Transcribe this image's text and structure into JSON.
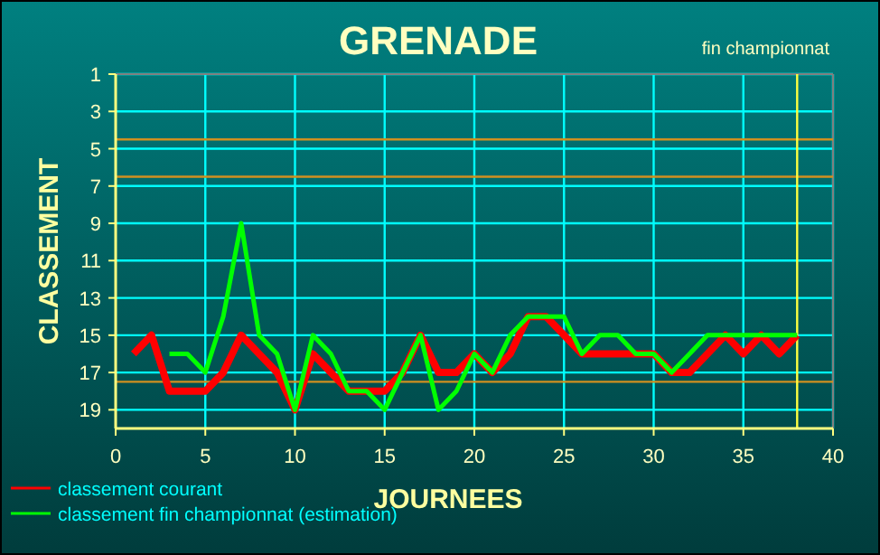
{
  "chart_data": {
    "type": "line",
    "title": "GRENADE",
    "xlabel": "JOURNEES",
    "ylabel": "CLASSEMENT",
    "annotations": [
      "fin championnat"
    ],
    "x": [
      1,
      2,
      3,
      4,
      5,
      6,
      7,
      8,
      9,
      10,
      11,
      12,
      13,
      14,
      15,
      16,
      17,
      18,
      19,
      20,
      21,
      22,
      23,
      24,
      25,
      26,
      27,
      28,
      29,
      30,
      31,
      32,
      33,
      34,
      35,
      36,
      37,
      38
    ],
    "series": [
      {
        "name": "classement courant",
        "color": "#ff0000",
        "values": [
          16,
          15,
          18,
          18,
          18,
          17,
          15,
          16,
          17,
          19,
          16,
          17,
          18,
          18,
          18,
          17,
          15,
          17,
          17,
          16,
          17,
          16,
          14,
          14,
          15,
          16,
          16,
          16,
          16,
          16,
          17,
          17,
          16,
          15,
          16,
          15,
          16,
          15
        ]
      },
      {
        "name": "classement fin championnat (estimation)",
        "color": "#00ff00",
        "values": [
          null,
          null,
          16,
          16,
          17,
          14,
          9,
          15,
          16,
          19,
          15,
          16,
          18,
          18,
          19,
          17,
          15,
          19,
          18,
          16,
          17,
          15,
          14,
          14,
          14,
          16,
          15,
          15,
          16,
          16,
          17,
          16,
          15,
          15,
          15,
          15,
          15,
          15
        ]
      }
    ],
    "xlim": [
      0,
      40
    ],
    "xticks": [
      0,
      5,
      10,
      15,
      20,
      25,
      30,
      35,
      40
    ],
    "ylim": [
      20,
      1
    ],
    "yticks": [
      1,
      3,
      5,
      7,
      9,
      11,
      13,
      15,
      17,
      19
    ],
    "ref_lines": [
      {
        "axis": "y",
        "value": 4.5,
        "color": "#d09020"
      },
      {
        "axis": "y",
        "value": 6.5,
        "color": "#d09020"
      },
      {
        "axis": "y",
        "value": 17.5,
        "color": "#d09020"
      },
      {
        "axis": "x",
        "value": 38,
        "color": "#ffff40"
      }
    ],
    "grid": true,
    "legend": "bottom left",
    "marker": "none",
    "line_style": "solid"
  }
}
